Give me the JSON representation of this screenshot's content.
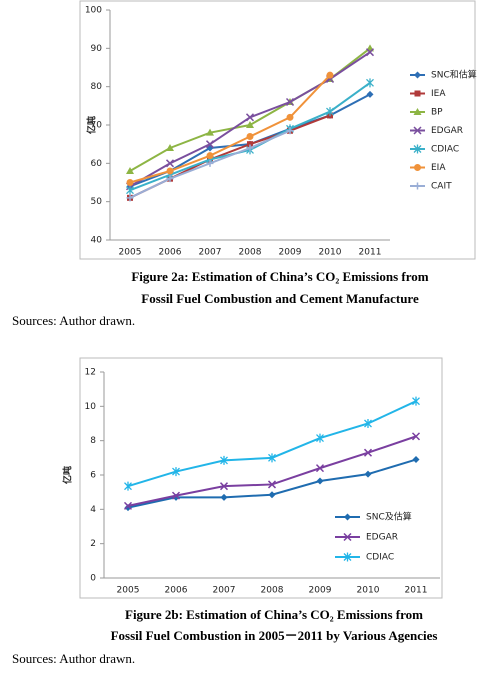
{
  "chart_data": [
    {
      "type": "line",
      "ylabel": "亿吨",
      "legend": "right",
      "grid": false,
      "categories": [
        "2005",
        "2006",
        "2007",
        "2008",
        "2009",
        "2010",
        "2011"
      ],
      "ylim": [
        40,
        100
      ],
      "yticks": [
        40,
        50,
        60,
        70,
        80,
        90,
        100
      ],
      "series": [
        {
          "name": "SNC和估算",
          "color": "#2e6fb5",
          "marker": "diamond",
          "values": [
            54,
            58,
            64,
            65,
            69,
            72.5,
            78
          ]
        },
        {
          "name": "IEA",
          "color": "#b03a3a",
          "marker": "square",
          "values": [
            51,
            56,
            61,
            65,
            68.5,
            72.5,
            null
          ]
        },
        {
          "name": "BP",
          "color": "#8db544",
          "marker": "triangle",
          "values": [
            58,
            64,
            68,
            70,
            76,
            82,
            90
          ]
        },
        {
          "name": "EDGAR",
          "color": "#7a4f9e",
          "marker": "x",
          "values": [
            54,
            60,
            65,
            72,
            76,
            82,
            89
          ]
        },
        {
          "name": "CDIAC",
          "color": "#3ab0c9",
          "marker": "star",
          "values": [
            53,
            57,
            61,
            63.5,
            69,
            73.5,
            81
          ]
        },
        {
          "name": "EIA",
          "color": "#f0923a",
          "marker": "circle",
          "values": [
            55,
            58,
            62,
            67,
            72,
            83,
            null
          ]
        },
        {
          "name": "CAIT",
          "color": "#9aaed6",
          "marker": "plus",
          "values": [
            51,
            56,
            60,
            64,
            68.5,
            null,
            null
          ]
        }
      ],
      "caption": [
        "Figure 2a: Estimation of China’s CO₂ Emissions from",
        "Fossil Fuel Combustion and Cement Manufacture"
      ],
      "source": "Sources: Author drawn."
    },
    {
      "type": "line",
      "ylabel": "亿吨",
      "legend": "lower right",
      "grid": false,
      "categories": [
        "2005",
        "2006",
        "2007",
        "2008",
        "2009",
        "2010",
        "2011"
      ],
      "ylim": [
        0,
        12
      ],
      "yticks": [
        0,
        2,
        4,
        6,
        8,
        10,
        12
      ],
      "series": [
        {
          "name": "SNC及估算",
          "color": "#1f6cb0",
          "marker": "diamond",
          "values": [
            4.1,
            4.7,
            4.7,
            4.85,
            5.65,
            6.05,
            6.9
          ]
        },
        {
          "name": "EDGAR",
          "color": "#7a3fa0",
          "marker": "x",
          "values": [
            4.2,
            4.8,
            5.35,
            5.45,
            6.4,
            7.3,
            8.25
          ]
        },
        {
          "name": "CDIAC",
          "color": "#22b5e8",
          "marker": "star",
          "values": [
            5.35,
            6.2,
            6.85,
            7.0,
            8.15,
            9.0,
            10.3
          ]
        }
      ],
      "caption": [
        "Figure 2b: Estimation of China’s CO₂ Emissions from",
        "Fossil Fuel Combustion in 2005－2011 by Various Agencies"
      ],
      "source": "Sources: Author drawn."
    }
  ]
}
